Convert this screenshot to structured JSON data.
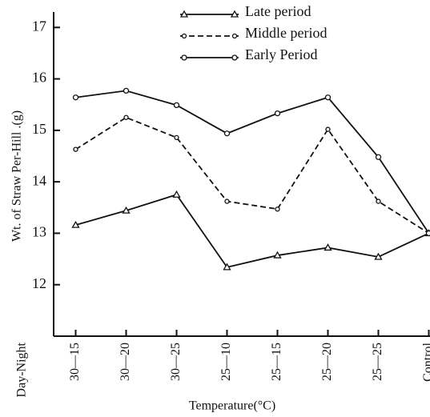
{
  "chart_data": {
    "type": "line",
    "ylabel": "Wt. of Straw Per-Hill .(g)",
    "xlabel": "Temperature(°C)",
    "x_row_label": "Day-Night",
    "categories": [
      "30—15",
      "30—20",
      "30—25",
      "25—10",
      "25—15",
      "25—20",
      "25—25",
      "Control"
    ],
    "series": [
      {
        "name": "Late period",
        "color": "#111111",
        "marker": "triangle",
        "dash": false,
        "values": [
          13.16,
          13.44,
          13.75,
          12.34,
          12.57,
          12.72,
          12.54,
          13.0
        ]
      },
      {
        "name": "Middle period",
        "color": "#111111",
        "marker": "dot",
        "dash": true,
        "values": [
          14.63,
          15.25,
          14.86,
          13.62,
          13.47,
          15.02,
          13.62,
          13.0
        ]
      },
      {
        "name": "Early Period",
        "color": "#111111",
        "marker": "circle",
        "dash": false,
        "values": [
          15.64,
          15.77,
          15.49,
          14.94,
          15.33,
          15.64,
          14.48,
          13.0
        ]
      }
    ],
    "ylim": [
      11,
      17.3
    ],
    "yticks": [
      12,
      13,
      14,
      15,
      16,
      17
    ],
    "grid": false
  }
}
